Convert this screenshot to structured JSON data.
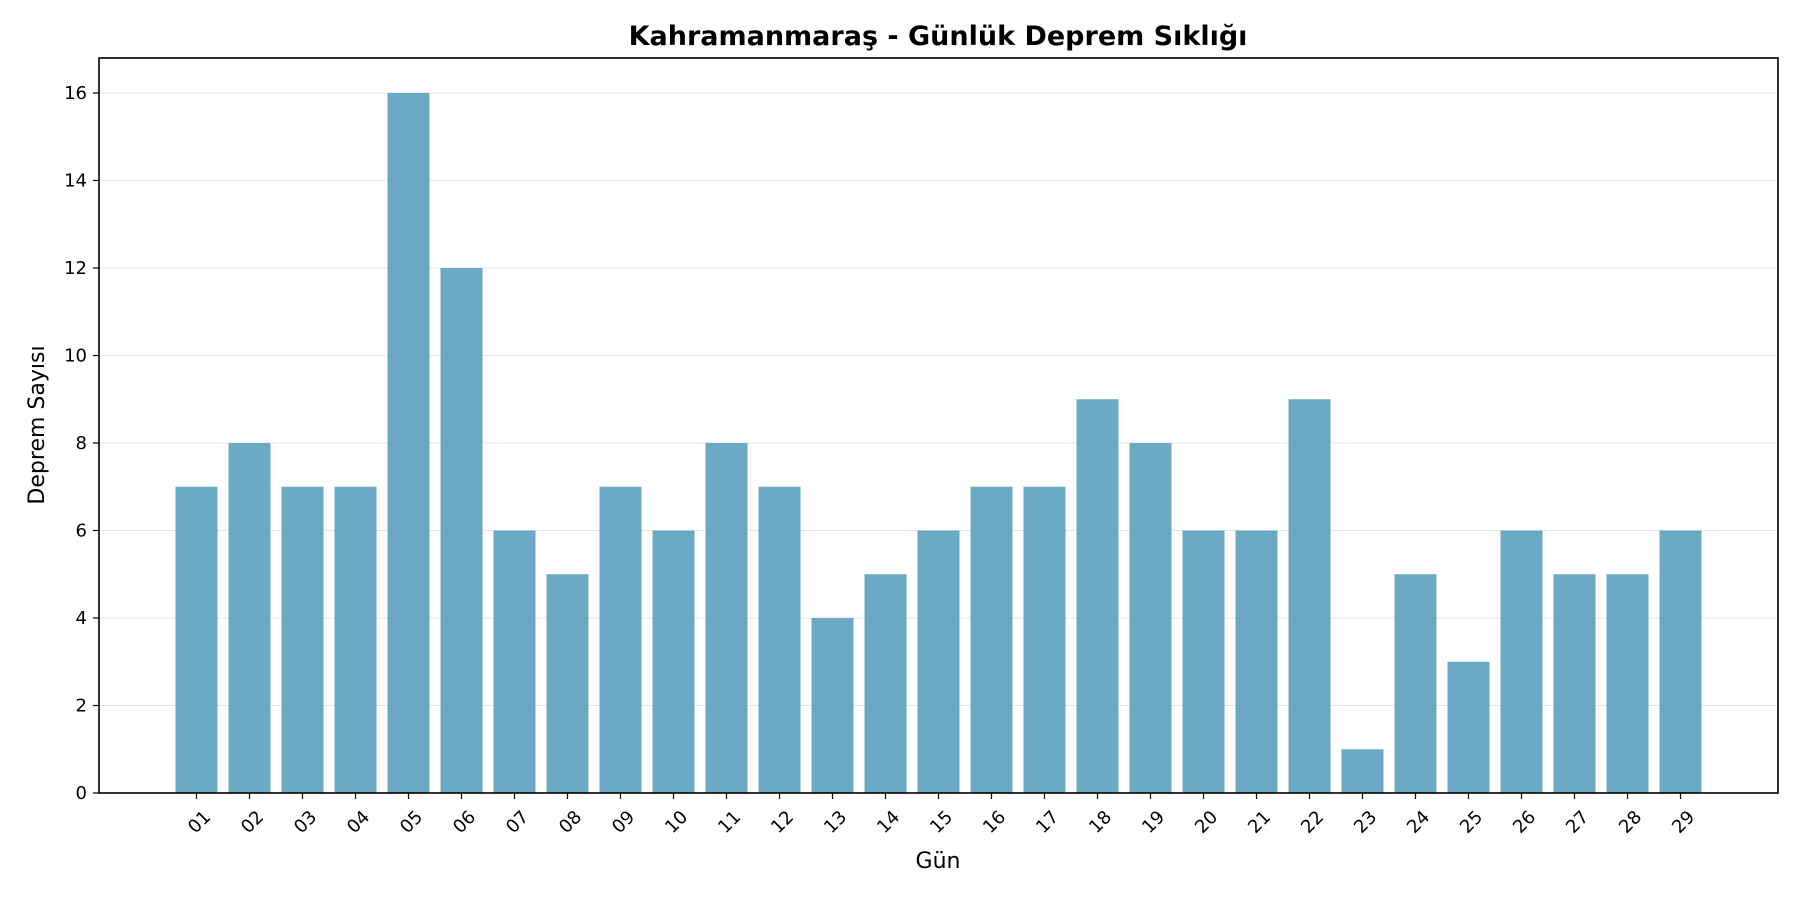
{
  "chart_data": {
    "type": "bar",
    "title": "Kahramanmaraş - Günlük Deprem Sıklığı",
    "xlabel": "Gün",
    "ylabel": "Deprem Sayısı",
    "categories": [
      "01",
      "02",
      "03",
      "04",
      "05",
      "06",
      "07",
      "08",
      "09",
      "10",
      "11",
      "12",
      "13",
      "14",
      "15",
      "16",
      "17",
      "18",
      "19",
      "20",
      "21",
      "22",
      "23",
      "24",
      "25",
      "26",
      "27",
      "28",
      "29"
    ],
    "values": [
      7,
      8,
      7,
      7,
      16,
      12,
      6,
      5,
      7,
      6,
      8,
      7,
      4,
      5,
      6,
      7,
      7,
      9,
      8,
      6,
      6,
      9,
      1,
      5,
      3,
      6,
      5,
      5,
      6
    ],
    "ylim": [
      0,
      16.8
    ],
    "yticks": [
      0,
      2,
      4,
      6,
      8,
      10,
      12,
      14,
      16
    ],
    "grid": "y",
    "bar_color": "#6aa8c4",
    "xtick_rotation": 45
  }
}
